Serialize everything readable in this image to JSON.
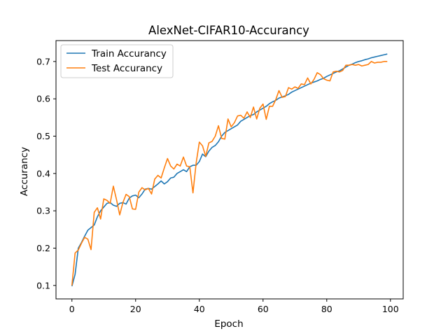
{
  "chart_data": {
    "type": "line",
    "title": "AlexNet-CIFAR10-Accurancy",
    "xlabel": "Epoch",
    "ylabel": "Accurancy",
    "xlim": [
      -5,
      104
    ],
    "ylim": [
      0.064,
      0.756
    ],
    "xticks": [
      0,
      20,
      40,
      60,
      80,
      100
    ],
    "yticks": [
      0.1,
      0.2,
      0.3,
      0.4,
      0.5,
      0.6,
      0.7
    ],
    "grid": false,
    "legend_position": "upper-left",
    "series": [
      {
        "name": "Train Accurancy",
        "color": "#1f77b4",
        "values": [
          0.098,
          0.13,
          0.2,
          0.215,
          0.232,
          0.248,
          0.255,
          0.262,
          0.284,
          0.3,
          0.31,
          0.32,
          0.322,
          0.315,
          0.312,
          0.32,
          0.322,
          0.318,
          0.334,
          0.34,
          0.342,
          0.335,
          0.345,
          0.358,
          0.36,
          0.358,
          0.365,
          0.372,
          0.38,
          0.372,
          0.378,
          0.388,
          0.39,
          0.4,
          0.405,
          0.41,
          0.405,
          0.418,
          0.422,
          0.422,
          0.432,
          0.452,
          0.445,
          0.46,
          0.47,
          0.475,
          0.485,
          0.5,
          0.51,
          0.515,
          0.52,
          0.525,
          0.53,
          0.54,
          0.545,
          0.55,
          0.555,
          0.558,
          0.565,
          0.57,
          0.575,
          0.58,
          0.587,
          0.592,
          0.596,
          0.602,
          0.605,
          0.608,
          0.612,
          0.618,
          0.622,
          0.626,
          0.63,
          0.634,
          0.638,
          0.642,
          0.645,
          0.648,
          0.652,
          0.655,
          0.66,
          0.664,
          0.668,
          0.672,
          0.675,
          0.68,
          0.685,
          0.69,
          0.693,
          0.697,
          0.7,
          0.702,
          0.705,
          0.707,
          0.71,
          0.712,
          0.714,
          0.716,
          0.718,
          0.72
        ]
      },
      {
        "name": "Test Accurancy",
        "color": "#ff7f0e",
        "values": [
          0.1,
          0.187,
          0.195,
          0.213,
          0.229,
          0.224,
          0.196,
          0.296,
          0.308,
          0.278,
          0.332,
          0.328,
          0.32,
          0.366,
          0.33,
          0.289,
          0.322,
          0.344,
          0.338,
          0.305,
          0.304,
          0.35,
          0.362,
          0.356,
          0.36,
          0.345,
          0.385,
          0.395,
          0.388,
          0.415,
          0.44,
          0.42,
          0.412,
          0.425,
          0.42,
          0.444,
          0.42,
          0.418,
          0.348,
          0.428,
          0.484,
          0.474,
          0.446,
          0.482,
          0.486,
          0.5,
          0.528,
          0.494,
          0.492,
          0.546,
          0.525,
          0.536,
          0.554,
          0.556,
          0.548,
          0.565,
          0.55,
          0.578,
          0.546,
          0.575,
          0.586,
          0.545,
          0.58,
          0.58,
          0.598,
          0.622,
          0.604,
          0.606,
          0.63,
          0.626,
          0.632,
          0.628,
          0.64,
          0.638,
          0.656,
          0.64,
          0.652,
          0.67,
          0.665,
          0.654,
          0.65,
          0.648,
          0.672,
          0.674,
          0.672,
          0.676,
          0.69,
          0.69,
          0.692,
          0.69,
          0.692,
          0.688,
          0.69,
          0.692,
          0.7,
          0.696,
          0.698,
          0.698,
          0.7,
          0.7
        ]
      }
    ]
  }
}
